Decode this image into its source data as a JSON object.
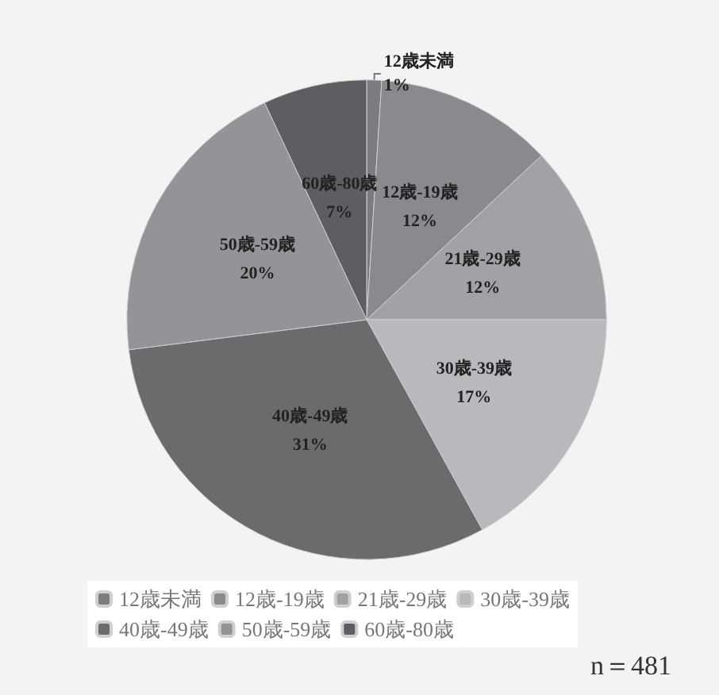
{
  "chart_data": {
    "type": "pie",
    "categories": [
      "12歳未満",
      "12歳-19歳",
      "21歳-29歳",
      "30歳-39歳",
      "40歳-49歳",
      "50歳-59歳",
      "60歳-80歳"
    ],
    "values": [
      1,
      12,
      12,
      17,
      31,
      20,
      7
    ],
    "value_labels": [
      "1%",
      "12%",
      "12%",
      "17%",
      "31%",
      "20%",
      "7%"
    ],
    "colors": [
      "#7c7c80",
      "#8a8a8e",
      "#a2a2a6",
      "#b9b9bd",
      "#6b6b6e",
      "#949498",
      "#5e5e62"
    ],
    "legend": "bottom",
    "annotations": [
      "n＝481"
    ]
  }
}
